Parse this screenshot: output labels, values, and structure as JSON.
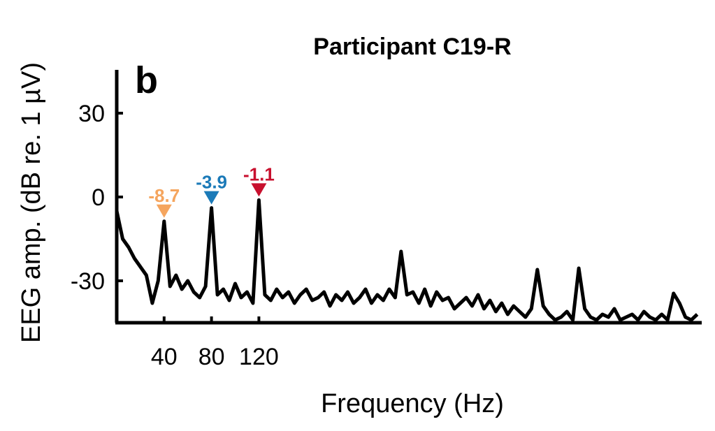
{
  "chart_data": {
    "type": "line",
    "title": "Participant C19-R",
    "panel_label": "b",
    "xlabel": "Frequency (Hz)",
    "ylabel": "EEG amp. (dB re. 1 µV)",
    "xlim": [
      0,
      492
    ],
    "ylim": [
      -45,
      45
    ],
    "xticks": [
      40,
      80,
      120
    ],
    "xtick_labels": [
      "40",
      "80",
      "120"
    ],
    "yticks": [
      30,
      0,
      -30
    ],
    "ytick_labels": [
      "30",
      "0",
      "-30"
    ],
    "grid": false,
    "line_color": "#000000",
    "x": [
      0,
      5,
      10,
      15,
      20,
      25,
      30,
      35,
      40,
      45,
      50,
      55,
      60,
      65,
      70,
      75,
      80,
      85,
      90,
      95,
      100,
      105,
      110,
      115,
      120,
      125,
      130,
      135,
      140,
      145,
      150,
      155,
      160,
      165,
      170,
      175,
      180,
      185,
      190,
      195,
      200,
      205,
      210,
      215,
      220,
      225,
      230,
      235,
      240,
      245,
      250,
      255,
      260,
      265,
      270,
      275,
      280,
      285,
      290,
      295,
      300,
      305,
      310,
      315,
      320,
      325,
      330,
      335,
      340,
      345,
      350,
      355,
      360,
      365,
      370,
      375,
      380,
      385,
      390,
      395,
      400,
      405,
      410,
      415,
      420,
      425,
      430,
      435,
      440,
      445,
      450,
      455,
      460,
      465,
      470,
      475,
      480,
      485,
      490
    ],
    "values": [
      -5,
      -15,
      -18,
      -22,
      -25,
      -28,
      -38,
      -30,
      -8.7,
      -32,
      -28,
      -33,
      -30,
      -34,
      -36,
      -32,
      -3.9,
      -35,
      -33,
      -37,
      -31,
      -36,
      -34,
      -38,
      -1.1,
      -35,
      -37,
      -33,
      -36,
      -34,
      -38,
      -35,
      -33,
      -37,
      -36,
      -34,
      -39,
      -35,
      -37,
      -34,
      -38,
      -36,
      -33,
      -38,
      -35,
      -37,
      -33,
      -36,
      -19.5,
      -35,
      -34,
      -38,
      -33,
      -39,
      -34,
      -37,
      -36,
      -40,
      -38,
      -36,
      -39,
      -35,
      -40,
      -37,
      -41,
      -38,
      -42,
      -39,
      -41,
      -43,
      -40,
      -26,
      -39,
      -42,
      -44,
      -43,
      -41,
      -44,
      -25.5,
      -40,
      -43,
      -44,
      -42,
      -43,
      -40,
      -44,
      -43,
      -42,
      -44,
      -41,
      -43,
      -44,
      -42,
      -44,
      -34.5,
      -38,
      -43,
      -44,
      -42
    ],
    "annotations": [
      {
        "x": 40,
        "y": -8.7,
        "label": "-8.7",
        "color": "#f5a55e",
        "marker": "down-triangle"
      },
      {
        "x": 80,
        "y": -3.9,
        "label": "-3.9",
        "color": "#1b7ab8",
        "marker": "down-triangle"
      },
      {
        "x": 120,
        "y": -1.1,
        "label": "-1.1",
        "color": "#c8102e",
        "marker": "down-triangle"
      }
    ]
  }
}
